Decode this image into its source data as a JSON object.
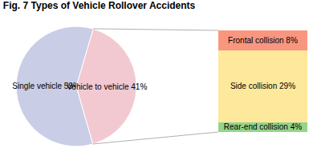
{
  "chart_data": [
    {
      "type": "pie",
      "title": "Fig. 7 Types of Vehicle Rollover Accidents",
      "categories": [
        "Single vehicle",
        "Vehicle to vehicle"
      ],
      "values": [
        59,
        41
      ],
      "value_labels": [
        "Single vehicle 59%",
        "Vehicle to vehicle 41%"
      ],
      "colors": [
        "#c9cde6",
        "#f3c9d1"
      ],
      "data_labels": true
    },
    {
      "type": "bar",
      "stacked": true,
      "categories": [
        null
      ],
      "ylim": [
        0,
        41
      ],
      "tick_labels": false,
      "data_labels": true,
      "series": [
        {
          "name": "Rear-end collision",
          "color": "#96d48a",
          "values": [
            4
          ],
          "value_labels": [
            "Rear-end collision 4%"
          ]
        },
        {
          "name": "Side collision",
          "color": "#fde89c",
          "values": [
            29
          ],
          "value_labels": [
            "Side collision 29%"
          ]
        },
        {
          "name": "Frontal collision",
          "color": "#f9967f",
          "values": [
            8
          ],
          "value_labels": [
            "Frontal collision 8%"
          ]
        }
      ]
    }
  ]
}
